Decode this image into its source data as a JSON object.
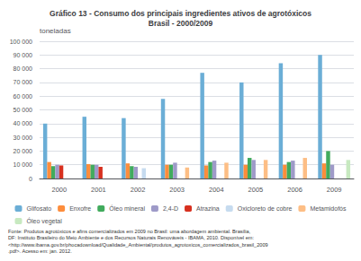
{
  "chart_data": {
    "type": "bar",
    "title": "Gráfico 13 - Consumo dos principais ingredientes ativos de agrotóxicos\nBrasil - 2000/2009",
    "ylabel": "toneladas",
    "categories": [
      "2000",
      "2001",
      "2002",
      "2003",
      "2004",
      "2005",
      "2006",
      "2009"
    ],
    "series": [
      {
        "name": "Glifosato",
        "color": "#6baed6",
        "values": [
          40000,
          45000,
          44000,
          58000,
          77000,
          70000,
          84000,
          90000
        ]
      },
      {
        "name": "Enxofre",
        "color": "#fd8d3c",
        "values": [
          12000,
          10500,
          11000,
          10000,
          9500,
          10000,
          10000,
          11000
        ]
      },
      {
        "name": "Óleo mineral",
        "color": "#41ab5d",
        "values": [
          9000,
          10000,
          9000,
          10000,
          12000,
          15000,
          12000,
          20000
        ]
      },
      {
        "name": "2,4-D",
        "color": "#9e9ac8",
        "values": [
          10000,
          10000,
          8500,
          11500,
          13000,
          13500,
          13000,
          10000
        ]
      },
      {
        "name": "Atrazina",
        "color": "#d7301f",
        "values": [
          9500,
          8500,
          0,
          0,
          0,
          0,
          0,
          0
        ]
      },
      {
        "name": "Oxicloreto de cobre",
        "color": "#c6dbef",
        "values": [
          0,
          0,
          7500,
          0,
          0,
          0,
          0,
          0
        ]
      },
      {
        "name": "Metamidofós",
        "color": "#fdbe85",
        "values": [
          0,
          0,
          0,
          8000,
          11500,
          13500,
          15000,
          0
        ]
      },
      {
        "name": "Óleo vegetal",
        "color": "#c7e9c0",
        "values": [
          0,
          0,
          0,
          0,
          0,
          0,
          0,
          13500
        ]
      }
    ],
    "ylim": [
      0,
      100000
    ],
    "yticks": [
      0,
      {
        "value": 10000,
        "label": "10 000"
      },
      {
        "value": 20000,
        "label": "20 000"
      },
      {
        "value": 30000,
        "label": "30 000"
      },
      {
        "value": 40000,
        "label": "40 000"
      },
      {
        "value": 50000,
        "label": "50 000"
      },
      {
        "value": 60000,
        "label": "60 000"
      },
      {
        "value": 70000,
        "label": "70 000"
      },
      {
        "value": 80000,
        "label": "80 000"
      },
      {
        "value": 90000,
        "label": "90 000"
      },
      {
        "value": 100000,
        "label": "100 000"
      }
    ],
    "grid": true,
    "legend": "bottom",
    "footnote": [
      "Fonte: Produtos agrotóxicos e afins comercializados em 2009 no Brasil: uma abordagem ambiental. Brasília,",
      "DF: Instituto Brasileiro do Meio Ambiente e dos Recursos Naturais Renováveis - IBAMA, 2010. Disponível em:",
      "<http://www.ibama.gov.br/phocadownload/Qualidade_Ambiental/produtos_agrotoxicos_comercializados_brasil_2009",
      ".pdf>. Acesso em: jan. 2012."
    ]
  }
}
